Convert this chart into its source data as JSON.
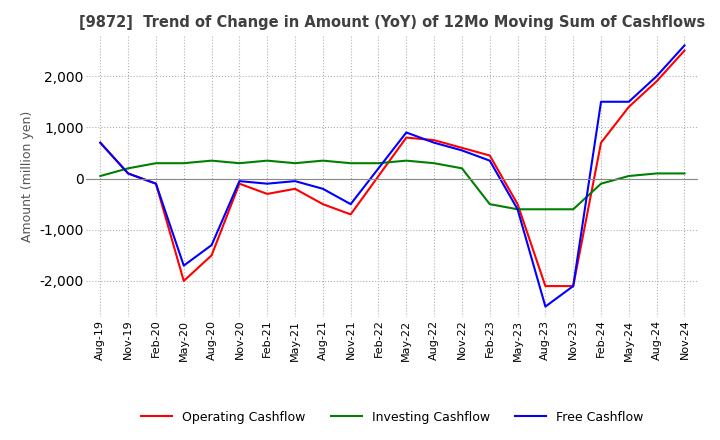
{
  "title": "[9872]  Trend of Change in Amount (YoY) of 12Mo Moving Sum of Cashflows",
  "ylabel": "Amount (million yen)",
  "ylim": [
    -2700,
    2800
  ],
  "yticks": [
    -2000,
    -1000,
    0,
    1000,
    2000
  ],
  "x_labels": [
    "Aug-19",
    "Nov-19",
    "Feb-20",
    "May-20",
    "Aug-20",
    "Nov-20",
    "Feb-21",
    "May-21",
    "Aug-21",
    "Nov-21",
    "Feb-22",
    "May-22",
    "Aug-22",
    "Nov-22",
    "Feb-23",
    "May-23",
    "Aug-23",
    "Nov-23",
    "Feb-24",
    "May-24",
    "Aug-24",
    "Nov-24"
  ],
  "operating": [
    700,
    100,
    -100,
    -2000,
    -1500,
    -100,
    -300,
    -200,
    -500,
    -700,
    50,
    800,
    750,
    600,
    450,
    -500,
    -2100,
    -2100,
    700,
    1400,
    1900,
    2500
  ],
  "investing": [
    50,
    200,
    300,
    300,
    350,
    300,
    350,
    300,
    350,
    300,
    300,
    350,
    300,
    200,
    -500,
    -600,
    -600,
    -600,
    -100,
    50,
    100,
    100
  ],
  "free": [
    700,
    100,
    -100,
    -1700,
    -1300,
    -50,
    -100,
    -50,
    -200,
    -500,
    200,
    900,
    700,
    550,
    350,
    -600,
    -2500,
    -2100,
    1500,
    1500,
    2000,
    2600
  ],
  "op_color": "#ff0000",
  "inv_color": "#008000",
  "free_color": "#0000ff",
  "bg_color": "#ffffff",
  "grid_color": "#b0b0b0"
}
